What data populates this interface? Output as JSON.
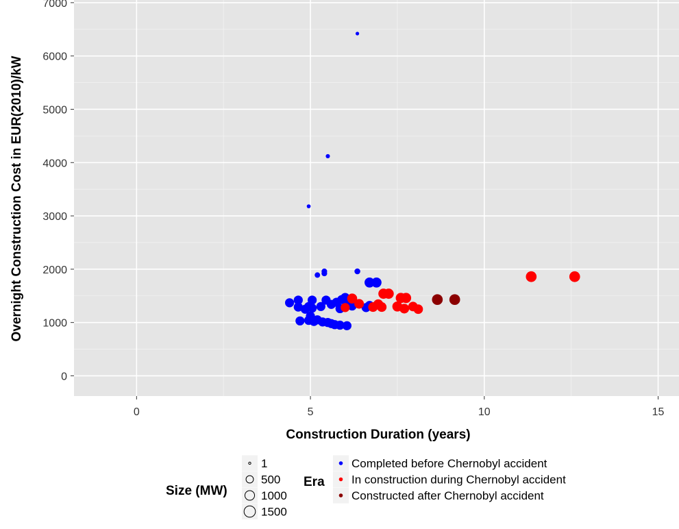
{
  "chart_data": {
    "type": "scatter",
    "xlabel": "Construction Duration (years)",
    "ylabel": "Overnight Construction Cost in EUR(2010)/kW",
    "xlim": [
      -1.8,
      15.6
    ],
    "ylim": [
      -380,
      7050
    ],
    "x_ticks": [
      0,
      5,
      10,
      15
    ],
    "y_ticks": [
      0,
      1000,
      2000,
      3000,
      4000,
      5000,
      6000,
      7000
    ],
    "grid": true,
    "legend_placement": "bottom",
    "size_legend": {
      "title": "Size (MW)",
      "entries": [
        {
          "label": "1",
          "size": 1
        },
        {
          "label": "500",
          "size": 500
        },
        {
          "label": "1000",
          "size": 1000
        },
        {
          "label": "1500",
          "size": 1500
        }
      ]
    },
    "color_legend": {
      "title": "Era",
      "entries": [
        {
          "label": "Completed before Chernobyl accident",
          "color": "#0000ff"
        },
        {
          "label": "In construction during Chernobyl accident",
          "color": "#ff0000"
        },
        {
          "label": "Constructed after Chernobyl accident",
          "color": "#8b0000"
        }
      ]
    },
    "series": [
      {
        "color": "#0000ff",
        "points": [
          {
            "x": 6.35,
            "y": 6420,
            "size": 40
          },
          {
            "x": 5.5,
            "y": 4120,
            "size": 80
          },
          {
            "x": 4.95,
            "y": 3180,
            "size": 60
          },
          {
            "x": 6.35,
            "y": 1960,
            "size": 250
          },
          {
            "x": 5.4,
            "y": 1960,
            "size": 220
          },
          {
            "x": 5.4,
            "y": 1920,
            "size": 220
          },
          {
            "x": 5.2,
            "y": 1890,
            "size": 200
          },
          {
            "x": 6.7,
            "y": 1750,
            "size": 1100
          },
          {
            "x": 6.9,
            "y": 1750,
            "size": 1100
          },
          {
            "x": 4.4,
            "y": 1370,
            "size": 850
          },
          {
            "x": 4.65,
            "y": 1420,
            "size": 850
          },
          {
            "x": 4.65,
            "y": 1290,
            "size": 850
          },
          {
            "x": 4.85,
            "y": 1250,
            "size": 850
          },
          {
            "x": 4.95,
            "y": 1300,
            "size": 850
          },
          {
            "x": 5.05,
            "y": 1420,
            "size": 850
          },
          {
            "x": 5.05,
            "y": 1270,
            "size": 850
          },
          {
            "x": 5.3,
            "y": 1300,
            "size": 850
          },
          {
            "x": 5.45,
            "y": 1420,
            "size": 850
          },
          {
            "x": 5.6,
            "y": 1340,
            "size": 850
          },
          {
            "x": 5.75,
            "y": 1380,
            "size": 850
          },
          {
            "x": 5.85,
            "y": 1260,
            "size": 850
          },
          {
            "x": 5.9,
            "y": 1430,
            "size": 850
          },
          {
            "x": 6.0,
            "y": 1470,
            "size": 850
          },
          {
            "x": 6.1,
            "y": 1390,
            "size": 850
          },
          {
            "x": 6.2,
            "y": 1310,
            "size": 850
          },
          {
            "x": 6.6,
            "y": 1280,
            "size": 850
          },
          {
            "x": 6.7,
            "y": 1320,
            "size": 850
          },
          {
            "x": 4.7,
            "y": 1030,
            "size": 850
          },
          {
            "x": 4.95,
            "y": 1040,
            "size": 850
          },
          {
            "x": 5.0,
            "y": 1120,
            "size": 850
          },
          {
            "x": 5.1,
            "y": 1020,
            "size": 850
          },
          {
            "x": 5.2,
            "y": 1050,
            "size": 850
          },
          {
            "x": 5.35,
            "y": 1010,
            "size": 850
          },
          {
            "x": 5.5,
            "y": 1000,
            "size": 850
          },
          {
            "x": 5.6,
            "y": 980,
            "size": 850
          },
          {
            "x": 5.7,
            "y": 960,
            "size": 850
          },
          {
            "x": 5.85,
            "y": 950,
            "size": 850
          },
          {
            "x": 6.05,
            "y": 940,
            "size": 850
          }
        ]
      },
      {
        "color": "#ff0000",
        "points": [
          {
            "x": 6.0,
            "y": 1280,
            "size": 850
          },
          {
            "x": 6.2,
            "y": 1450,
            "size": 1100
          },
          {
            "x": 6.4,
            "y": 1350,
            "size": 1000
          },
          {
            "x": 6.8,
            "y": 1290,
            "size": 1000
          },
          {
            "x": 6.95,
            "y": 1340,
            "size": 1100
          },
          {
            "x": 7.05,
            "y": 1290,
            "size": 1000
          },
          {
            "x": 7.1,
            "y": 1540,
            "size": 1150
          },
          {
            "x": 7.25,
            "y": 1540,
            "size": 1150
          },
          {
            "x": 7.5,
            "y": 1300,
            "size": 1100
          },
          {
            "x": 7.6,
            "y": 1460,
            "size": 1150
          },
          {
            "x": 7.75,
            "y": 1460,
            "size": 1150
          },
          {
            "x": 7.7,
            "y": 1260,
            "size": 1000
          },
          {
            "x": 7.95,
            "y": 1300,
            "size": 950
          },
          {
            "x": 8.1,
            "y": 1250,
            "size": 950
          },
          {
            "x": 11.35,
            "y": 1860,
            "size": 1300
          },
          {
            "x": 12.6,
            "y": 1860,
            "size": 1300
          }
        ]
      },
      {
        "color": "#8b0000",
        "points": [
          {
            "x": 8.65,
            "y": 1430,
            "size": 1300
          },
          {
            "x": 9.15,
            "y": 1430,
            "size": 1300
          }
        ]
      }
    ]
  }
}
